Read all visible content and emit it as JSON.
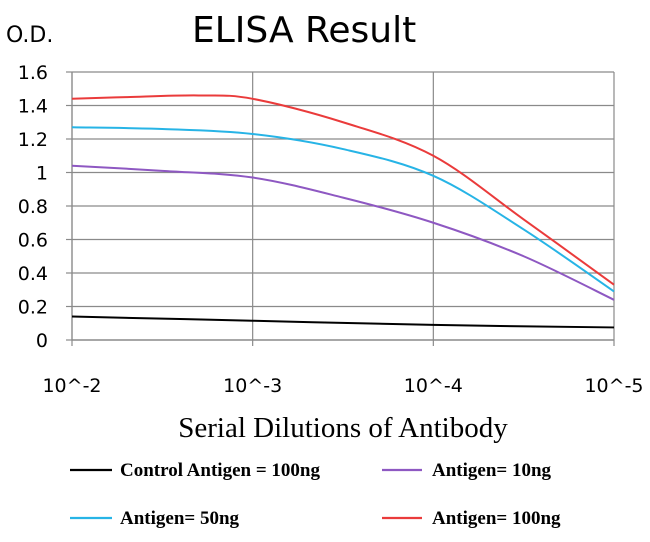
{
  "chart_data": {
    "type": "line",
    "title": "ELISA Result",
    "ylabel": "O.D.",
    "xlabel": "Serial Dilutions of Antibody",
    "categories": [
      "10^-2",
      "10^-3",
      "10^-4",
      "10^-5"
    ],
    "ylim": [
      0,
      1.6
    ],
    "yticks": [
      "0",
      "0.2",
      "0.4",
      "0.6",
      "0.8",
      "1",
      "1.2",
      "1.4",
      "1.6"
    ],
    "grid": true,
    "legend_position": "bottom",
    "series": [
      {
        "name": "Control Antigen = 100ng",
        "color": "#000000",
        "x": [
          0,
          1,
          2,
          3
        ],
        "values": [
          0.14,
          0.115,
          0.09,
          0.075
        ]
      },
      {
        "name": "Antigen= 10ng",
        "color": "#8e58c2",
        "x": [
          0,
          0.5,
          1,
          1.5,
          2,
          2.5,
          3
        ],
        "values": [
          1.04,
          1.01,
          0.97,
          0.85,
          0.7,
          0.5,
          0.24
        ]
      },
      {
        "name": "Antigen= 50ng",
        "color": "#27b4e6",
        "x": [
          0,
          0.5,
          1,
          1.5,
          2,
          2.5,
          3
        ],
        "values": [
          1.27,
          1.26,
          1.23,
          1.14,
          0.98,
          0.66,
          0.29
        ]
      },
      {
        "name": "Antigen= 100ng",
        "color": "#ea3b3b",
        "x": [
          0,
          0.3,
          0.7,
          1,
          1.5,
          2,
          2.5,
          3
        ],
        "values": [
          1.44,
          1.45,
          1.46,
          1.44,
          1.3,
          1.1,
          0.72,
          0.33
        ]
      }
    ]
  }
}
